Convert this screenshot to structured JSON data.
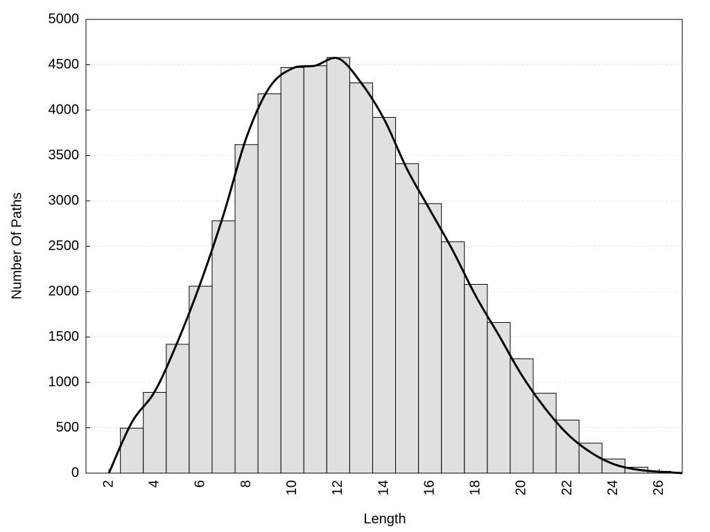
{
  "chart_data": {
    "type": "histogram",
    "x_label": "Length",
    "y_label": "Number Of Paths",
    "bins": [
      2.5,
      3.5,
      4.5,
      5.5,
      6.5,
      7.5,
      8.5,
      9.5,
      10.5,
      11.5,
      12.5,
      13.5,
      14.5,
      15.5,
      16.5,
      17.5,
      18.5,
      19.5,
      20.5,
      21.5,
      22.5,
      23.5,
      24.5,
      25.5,
      26.5
    ],
    "counts": [
      495,
      890,
      1420,
      2060,
      2780,
      3620,
      4180,
      4470,
      4490,
      4580,
      4300,
      3920,
      3410,
      2970,
      2550,
      2080,
      1660,
      1260,
      880,
      585,
      330,
      155,
      65,
      20
    ],
    "color": "#e0e0e0",
    "line": {
      "color": "#000000",
      "x": [
        2,
        3,
        4,
        5,
        6,
        7,
        8,
        9,
        10,
        11,
        12,
        13,
        14,
        15,
        16,
        17,
        18,
        19,
        20,
        21,
        22,
        23,
        24,
        25,
        26,
        27
      ],
      "values": [
        0,
        560,
        900,
        1450,
        2100,
        2850,
        3700,
        4250,
        4460,
        4490,
        4570,
        4300,
        3900,
        3350,
        2900,
        2450,
        1950,
        1520,
        1080,
        720,
        430,
        230,
        100,
        40,
        15,
        0
      ]
    },
    "xlim": [
      1,
      27
    ],
    "ylim": [
      0,
      5000
    ],
    "xticks": [
      2,
      4,
      6,
      8,
      10,
      12,
      14,
      16,
      18,
      20,
      22,
      24,
      26
    ],
    "yticks": [
      0,
      500,
      1000,
      1500,
      2000,
      2500,
      3000,
      3500,
      4000,
      4500,
      5000
    ],
    "grid": true
  }
}
